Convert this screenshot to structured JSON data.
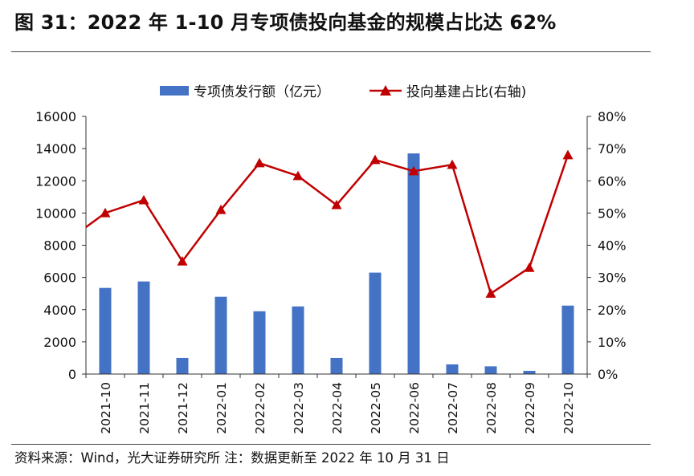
{
  "header": {
    "title": "图 31：2022 年 1-10 月专项债投向基金的规模占比达 62%"
  },
  "footer": {
    "source": "资料来源：Wind，光大证券研究所    注：数据更新至 2022 年 10 月 31 日"
  },
  "colors": {
    "bar": "#4472C4",
    "line": "#C00000",
    "axis": "#333333"
  },
  "chart_data": {
    "type": "bar",
    "title": "",
    "xlabel": "",
    "ylabel": "",
    "legend_position": "top",
    "grid": false,
    "categories": [
      "2021-10",
      "2021-11",
      "2021-12",
      "2022-01",
      "2022-02",
      "2022-03",
      "2022-04",
      "2022-05",
      "2022-06",
      "2022-07",
      "2022-08",
      "2022-09",
      "2022-10"
    ],
    "series": [
      {
        "name": "专项债发行额（亿元）",
        "type": "bar",
        "axis": "left",
        "values": [
          5350,
          5750,
          1000,
          4800,
          3900,
          4200,
          1000,
          6300,
          13700,
          600,
          480,
          200,
          4250
        ]
      },
      {
        "name": "投向基建占比(右轴)",
        "type": "line",
        "axis": "right",
        "marker": "triangle",
        "values": [
          0.5,
          0.54,
          0.35,
          0.51,
          0.655,
          0.615,
          0.525,
          0.665,
          0.63,
          0.65,
          0.25,
          0.33,
          0.68
        ]
      }
    ],
    "ylim": [
      0,
      16000
    ],
    "y2lim": [
      0,
      0.8
    ],
    "y_ticks": [
      "0",
      "2000",
      "4000",
      "6000",
      "8000",
      "10000",
      "12000",
      "14000",
      "16000"
    ],
    "y2_ticks": [
      "0%",
      "10%",
      "20%",
      "30%",
      "40%",
      "50%",
      "60%",
      "70%",
      "80%"
    ]
  }
}
